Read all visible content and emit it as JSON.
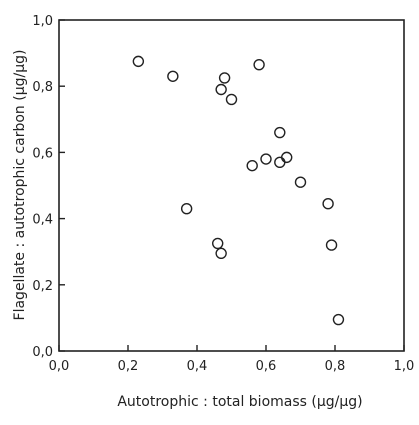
{
  "chart_data": {
    "type": "scatter",
    "title": "",
    "xlabel": "Autotrophic : total biomass (μg/μg)",
    "ylabel": "Flagellate : autotrophic carbon (μg/μg)",
    "xlim": [
      0,
      1.0
    ],
    "ylim": [
      0,
      1.0
    ],
    "xticks": [
      "0,0",
      "0,2",
      "0,4",
      "0,6",
      "0,8",
      "1,0"
    ],
    "yticks": [
      "0,0",
      "0,2",
      "0,4",
      "0,6",
      "0,8",
      "1,0"
    ],
    "grid": false,
    "legend": "none",
    "marker": "open-circle",
    "points": [
      {
        "x": 0.23,
        "y": 0.875
      },
      {
        "x": 0.33,
        "y": 0.83
      },
      {
        "x": 0.47,
        "y": 0.79
      },
      {
        "x": 0.48,
        "y": 0.825
      },
      {
        "x": 0.5,
        "y": 0.76
      },
      {
        "x": 0.58,
        "y": 0.865
      },
      {
        "x": 0.64,
        "y": 0.66
      },
      {
        "x": 0.56,
        "y": 0.56
      },
      {
        "x": 0.6,
        "y": 0.58
      },
      {
        "x": 0.64,
        "y": 0.57
      },
      {
        "x": 0.66,
        "y": 0.585
      },
      {
        "x": 0.7,
        "y": 0.51
      },
      {
        "x": 0.37,
        "y": 0.43
      },
      {
        "x": 0.78,
        "y": 0.445
      },
      {
        "x": 0.46,
        "y": 0.325
      },
      {
        "x": 0.47,
        "y": 0.295
      },
      {
        "x": 0.79,
        "y": 0.32
      },
      {
        "x": 0.81,
        "y": 0.095
      }
    ]
  }
}
